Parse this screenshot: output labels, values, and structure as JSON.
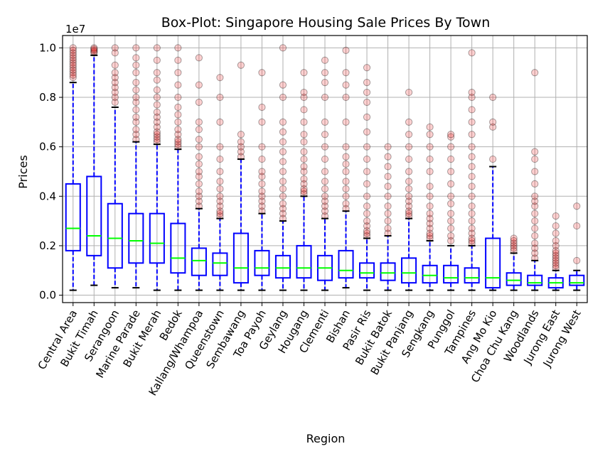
{
  "chart_data": {
    "type": "box",
    "title": "Box-Plot: Singapore Housing Sale Prices By Town",
    "xlabel": "Region",
    "ylabel": "Prices",
    "y_offset_label": "1e7",
    "y_scale_multiplier": 10000000,
    "ylim": [
      -0.03,
      1.05
    ],
    "y_ticks": [
      0.0,
      0.2,
      0.4,
      0.6,
      0.8,
      1.0
    ],
    "y_tick_labels": [
      "0.0",
      "0.2",
      "0.4",
      "0.6",
      "0.8",
      "1.0"
    ],
    "grid": true,
    "colors": {
      "box": "#0000ff",
      "whisker": "#0000ff",
      "median": "#00ff00",
      "cap": "#000000",
      "flier_fill": "#ff0000",
      "flier_edge": "#000000",
      "grid": "#b0b0b0"
    },
    "categories": [
      "Central Area",
      "Bukit Timah",
      "Serangoon",
      "Marine Parade",
      "Bukit Merah",
      "Bedok",
      "Kallang/Whampoa",
      "Queenstown",
      "Sembawang",
      "Toa Payoh",
      "Geylang",
      "Hougang",
      "Clementi",
      "Bishan",
      "Pasir Ris",
      "Bukit Batok",
      "Bukit Panjang",
      "Sengkang",
      "Punggol",
      "Tampines",
      "Ang Mo Kio",
      "Choa Chu Kang",
      "Woodlands",
      "Jurong East",
      "Jurong West"
    ],
    "boxes": [
      {
        "whislo": 0.02,
        "q1": 0.18,
        "med": 0.27,
        "q3": 0.45,
        "whishi": 0.86,
        "fliers": [
          0.88,
          0.9,
          0.92,
          0.94,
          0.95,
          0.96,
          0.97,
          0.98,
          0.99,
          1.0,
          0.93,
          0.89,
          0.91
        ]
      },
      {
        "whislo": 0.04,
        "q1": 0.16,
        "med": 0.24,
        "q3": 0.48,
        "whishi": 0.97,
        "fliers": [
          0.98,
          0.99,
          1.0,
          0.985,
          0.995
        ]
      },
      {
        "whislo": 0.03,
        "q1": 0.11,
        "med": 0.23,
        "q3": 0.37,
        "whishi": 0.76,
        "fliers": [
          0.78,
          0.8,
          0.82,
          0.84,
          0.86,
          0.88,
          0.9,
          0.93,
          0.98,
          1.0
        ]
      },
      {
        "whislo": 0.03,
        "q1": 0.13,
        "med": 0.22,
        "q3": 0.33,
        "whishi": 0.62,
        "fliers": [
          0.63,
          0.65,
          0.67,
          0.7,
          0.72,
          0.75,
          0.78,
          0.8,
          0.83,
          0.86,
          0.9,
          0.93,
          0.96,
          1.0
        ]
      },
      {
        "whislo": 0.02,
        "q1": 0.13,
        "med": 0.21,
        "q3": 0.33,
        "whishi": 0.61,
        "fliers": [
          0.62,
          0.63,
          0.64,
          0.65,
          0.66,
          0.68,
          0.7,
          0.72,
          0.74,
          0.77,
          0.8,
          0.83,
          0.87,
          0.9,
          0.95,
          1.0
        ]
      },
      {
        "whislo": 0.02,
        "q1": 0.09,
        "med": 0.15,
        "q3": 0.29,
        "whishi": 0.59,
        "fliers": [
          0.6,
          0.61,
          0.62,
          0.63,
          0.65,
          0.67,
          0.7,
          0.73,
          0.76,
          0.8,
          0.85,
          0.9,
          0.95,
          1.0
        ]
      },
      {
        "whislo": 0.02,
        "q1": 0.08,
        "med": 0.14,
        "q3": 0.19,
        "whishi": 0.35,
        "fliers": [
          0.36,
          0.38,
          0.4,
          0.42,
          0.45,
          0.48,
          0.5,
          0.53,
          0.56,
          0.6,
          0.63,
          0.67,
          0.7,
          0.78,
          0.85,
          0.96
        ]
      },
      {
        "whislo": 0.02,
        "q1": 0.08,
        "med": 0.13,
        "q3": 0.17,
        "whishi": 0.31,
        "fliers": [
          0.32,
          0.33,
          0.34,
          0.36,
          0.38,
          0.4,
          0.43,
          0.46,
          0.5,
          0.55,
          0.6,
          0.7,
          0.8,
          0.88
        ]
      },
      {
        "whislo": 0.02,
        "q1": 0.05,
        "med": 0.11,
        "q3": 0.25,
        "whishi": 0.55,
        "fliers": [
          0.56,
          0.58,
          0.6,
          0.62,
          0.65,
          0.93
        ]
      },
      {
        "whislo": 0.02,
        "q1": 0.08,
        "med": 0.11,
        "q3": 0.18,
        "whishi": 0.33,
        "fliers": [
          0.34,
          0.36,
          0.38,
          0.4,
          0.42,
          0.45,
          0.48,
          0.5,
          0.55,
          0.6,
          0.7,
          0.76,
          0.9
        ]
      },
      {
        "whislo": 0.02,
        "q1": 0.07,
        "med": 0.11,
        "q3": 0.16,
        "whishi": 0.3,
        "fliers": [
          0.31,
          0.33,
          0.35,
          0.37,
          0.4,
          0.43,
          0.46,
          0.5,
          0.54,
          0.58,
          0.62,
          0.66,
          0.7,
          0.8,
          0.85,
          1.0
        ]
      },
      {
        "whislo": 0.02,
        "q1": 0.07,
        "med": 0.11,
        "q3": 0.2,
        "whishi": 0.4,
        "fliers": [
          0.41,
          0.42,
          0.43,
          0.45,
          0.47,
          0.5,
          0.52,
          0.55,
          0.58,
          0.62,
          0.65,
          0.7,
          0.75,
          0.8,
          0.82,
          0.9
        ]
      },
      {
        "whislo": 0.02,
        "q1": 0.06,
        "med": 0.11,
        "q3": 0.16,
        "whishi": 0.31,
        "fliers": [
          0.32,
          0.34,
          0.36,
          0.38,
          0.4,
          0.43,
          0.46,
          0.5,
          0.55,
          0.6,
          0.65,
          0.7,
          0.8,
          0.86,
          0.9,
          0.95
        ]
      },
      {
        "whislo": 0.03,
        "q1": 0.07,
        "med": 0.1,
        "q3": 0.18,
        "whishi": 0.34,
        "fliers": [
          0.35,
          0.37,
          0.4,
          0.43,
          0.46,
          0.5,
          0.53,
          0.56,
          0.6,
          0.7,
          0.8,
          0.85,
          0.9,
          0.99
        ]
      },
      {
        "whislo": 0.02,
        "q1": 0.07,
        "med": 0.09,
        "q3": 0.13,
        "whishi": 0.23,
        "fliers": [
          0.24,
          0.25,
          0.26,
          0.28,
          0.3,
          0.33,
          0.36,
          0.4,
          0.45,
          0.5,
          0.55,
          0.6,
          0.66,
          0.72,
          0.78,
          0.82,
          0.86,
          0.92
        ]
      },
      {
        "whislo": 0.02,
        "q1": 0.06,
        "med": 0.09,
        "q3": 0.13,
        "whishi": 0.24,
        "fliers": [
          0.25,
          0.27,
          0.3,
          0.33,
          0.36,
          0.4,
          0.44,
          0.48,
          0.52,
          0.56,
          0.6
        ]
      },
      {
        "whislo": 0.02,
        "q1": 0.05,
        "med": 0.09,
        "q3": 0.15,
        "whishi": 0.31,
        "fliers": [
          0.32,
          0.33,
          0.34,
          0.36,
          0.38,
          0.4,
          0.43,
          0.46,
          0.5,
          0.55,
          0.6,
          0.65,
          0.7,
          0.82
        ]
      },
      {
        "whislo": 0.02,
        "q1": 0.05,
        "med": 0.08,
        "q3": 0.12,
        "whishi": 0.22,
        "fliers": [
          0.23,
          0.24,
          0.25,
          0.27,
          0.29,
          0.31,
          0.33,
          0.36,
          0.4,
          0.44,
          0.5,
          0.55,
          0.6,
          0.65,
          0.68
        ]
      },
      {
        "whislo": 0.02,
        "q1": 0.05,
        "med": 0.07,
        "q3": 0.12,
        "whishi": 0.2,
        "fliers": [
          0.22,
          0.24,
          0.27,
          0.3,
          0.33,
          0.37,
          0.4,
          0.45,
          0.5,
          0.55,
          0.6,
          0.64,
          0.65
        ]
      },
      {
        "whislo": 0.02,
        "q1": 0.05,
        "med": 0.07,
        "q3": 0.11,
        "whishi": 0.2,
        "fliers": [
          0.21,
          0.22,
          0.23,
          0.25,
          0.27,
          0.3,
          0.33,
          0.36,
          0.4,
          0.44,
          0.48,
          0.52,
          0.56,
          0.6,
          0.65,
          0.7,
          0.75,
          0.8,
          0.82,
          0.98
        ]
      },
      {
        "whislo": 0.02,
        "q1": 0.03,
        "med": 0.07,
        "q3": 0.23,
        "whishi": 0.52,
        "fliers": [
          0.55,
          0.68,
          0.7,
          0.8
        ]
      },
      {
        "whislo": 0.02,
        "q1": 0.04,
        "med": 0.06,
        "q3": 0.09,
        "whishi": 0.17,
        "fliers": [
          0.18,
          0.19,
          0.2,
          0.21,
          0.22,
          0.23
        ]
      },
      {
        "whislo": 0.02,
        "q1": 0.04,
        "med": 0.05,
        "q3": 0.08,
        "whishi": 0.14,
        "fliers": [
          0.15,
          0.17,
          0.19,
          0.21,
          0.24,
          0.27,
          0.3,
          0.33,
          0.36,
          0.38,
          0.4,
          0.45,
          0.5,
          0.55,
          0.58,
          0.9
        ]
      },
      {
        "whislo": 0.02,
        "q1": 0.03,
        "med": 0.05,
        "q3": 0.07,
        "whishi": 0.1,
        "fliers": [
          0.11,
          0.12,
          0.13,
          0.14,
          0.15,
          0.16,
          0.17,
          0.18,
          0.2,
          0.22,
          0.25,
          0.28,
          0.32
        ]
      },
      {
        "whislo": 0.02,
        "q1": 0.04,
        "med": 0.05,
        "q3": 0.08,
        "whishi": 0.1,
        "fliers": [
          0.14,
          0.28,
          0.36
        ]
      }
    ]
  }
}
